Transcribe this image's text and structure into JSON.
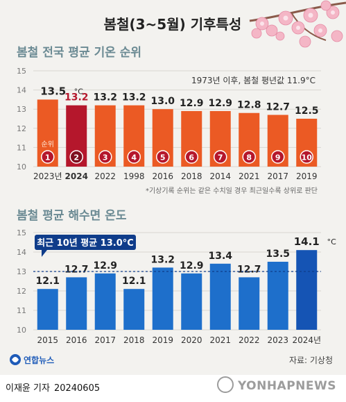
{
  "title": "봄철(3~5월) 기후특성",
  "colors": {
    "background": "#f3f2ef",
    "bar_orange": "#eb5a24",
    "bar_highlight": "#b5172c",
    "bar_blue": "#1e6fcb",
    "bar_blue_latest": "#1554b4",
    "title_text": "#222222",
    "subtitle_text": "#6b8a93",
    "reference_line": "#0f3c8a"
  },
  "footer": {
    "logo_text": "연합뉴스",
    "source": "자료: 기상청",
    "reporter": "이재윤 기자",
    "date": "20240605",
    "watermark": "YONHAPNEWS"
  },
  "chart_data": [
    {
      "type": "bar",
      "title": "봄철 전국 평균 기온 순위",
      "annotation": "1973년 이후, 봄철 평년값 11.9°C",
      "note": "*기상기록 순위는 같은 수치일 경우 최근일수록 상위로 판단",
      "rank_label": "순위",
      "unit": "°C",
      "categories": [
        "2023년",
        "2024",
        "2022",
        "1998",
        "2016",
        "2018",
        "2014",
        "2021",
        "2017",
        "2019"
      ],
      "values": [
        13.5,
        13.2,
        13.2,
        13.2,
        13.0,
        12.9,
        12.9,
        12.8,
        12.7,
        12.5
      ],
      "value_labels": [
        "13.5",
        "13.2",
        "13.2",
        "13.2",
        "13.0",
        "12.9",
        "12.9",
        "12.8",
        "12.7",
        "12.5"
      ],
      "ranks": [
        "1",
        "2",
        "3",
        "4",
        "5",
        "6",
        "7",
        "8",
        "9",
        "10"
      ],
      "highlight_category": "2024",
      "ylim": [
        10,
        15
      ],
      "yticks": [
        "10",
        "11",
        "12",
        "13",
        "14",
        "15"
      ],
      "grid": true
    },
    {
      "type": "bar",
      "title": "봄철 평균 해수면 온도",
      "unit": "°C",
      "reference_label": "최근 10년 평균 13.0°C",
      "reference_value": 13.0,
      "categories": [
        "2015",
        "2016",
        "2017",
        "2018",
        "2019",
        "2020",
        "2021",
        "2022",
        "2023",
        "2024년"
      ],
      "values": [
        12.1,
        12.7,
        12.9,
        12.1,
        13.2,
        12.9,
        13.4,
        12.7,
        13.5,
        14.1
      ],
      "value_labels": [
        "12.1",
        "12.7",
        "12.9",
        "12.1",
        "13.2",
        "12.9",
        "13.4",
        "12.7",
        "13.5",
        "14.1"
      ],
      "highlight_category": "2024년",
      "ylim": [
        10,
        15
      ],
      "yticks": [
        "10",
        "11",
        "12",
        "13",
        "14",
        "15"
      ],
      "grid": true
    }
  ]
}
